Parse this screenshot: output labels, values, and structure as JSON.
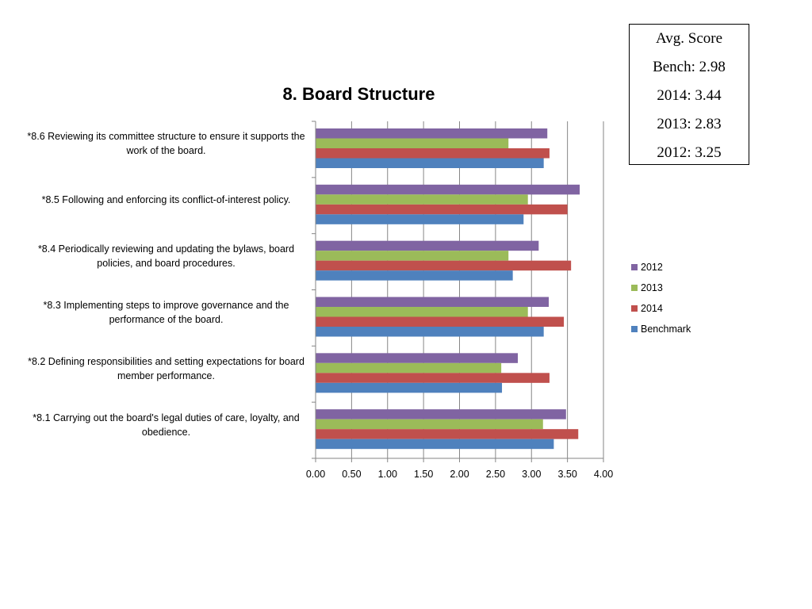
{
  "score_box": {
    "lines": [
      "Avg. Score",
      "Bench: 2.98",
      "2014: 3.44",
      "2013: 2.83",
      "2012: 3.25"
    ]
  },
  "chart_data": {
    "type": "bar",
    "orientation": "horizontal",
    "title": "8. Board Structure",
    "xlim": [
      0,
      4
    ],
    "x_ticks": [
      "0.00",
      "0.50",
      "1.00",
      "1.50",
      "2.00",
      "2.50",
      "3.00",
      "3.50",
      "4.00"
    ],
    "grid": true,
    "legend_position": "right",
    "categories": [
      "*8.6 Reviewing its committee structure to ensure it supports the work of the board.",
      "*8.5 Following and enforcing its conflict-of-interest policy.",
      "*8.4 Periodically reviewing and updating the bylaws, board policies, and board procedures.",
      "*8.3 Implementing steps to improve governance and the performance of the board.",
      "*8.2 Defining responsibilities and setting expectations for board member performance.",
      "*8.1 Carrying out the board's legal duties of care, loyalty, and obedience."
    ],
    "series": [
      {
        "name": "2012",
        "color": "#8064A2",
        "values": [
          3.22,
          3.67,
          3.1,
          3.24,
          2.81,
          3.48
        ]
      },
      {
        "name": "2013",
        "color": "#9BBB59",
        "values": [
          2.68,
          2.95,
          2.68,
          2.95,
          2.58,
          3.16
        ]
      },
      {
        "name": "2014",
        "color": "#C0504D",
        "values": [
          3.25,
          3.5,
          3.55,
          3.45,
          3.25,
          3.65
        ]
      },
      {
        "name": "Benchmark",
        "color": "#4F81BD",
        "values": [
          3.17,
          2.89,
          2.74,
          3.17,
          2.59,
          3.31
        ]
      }
    ]
  }
}
